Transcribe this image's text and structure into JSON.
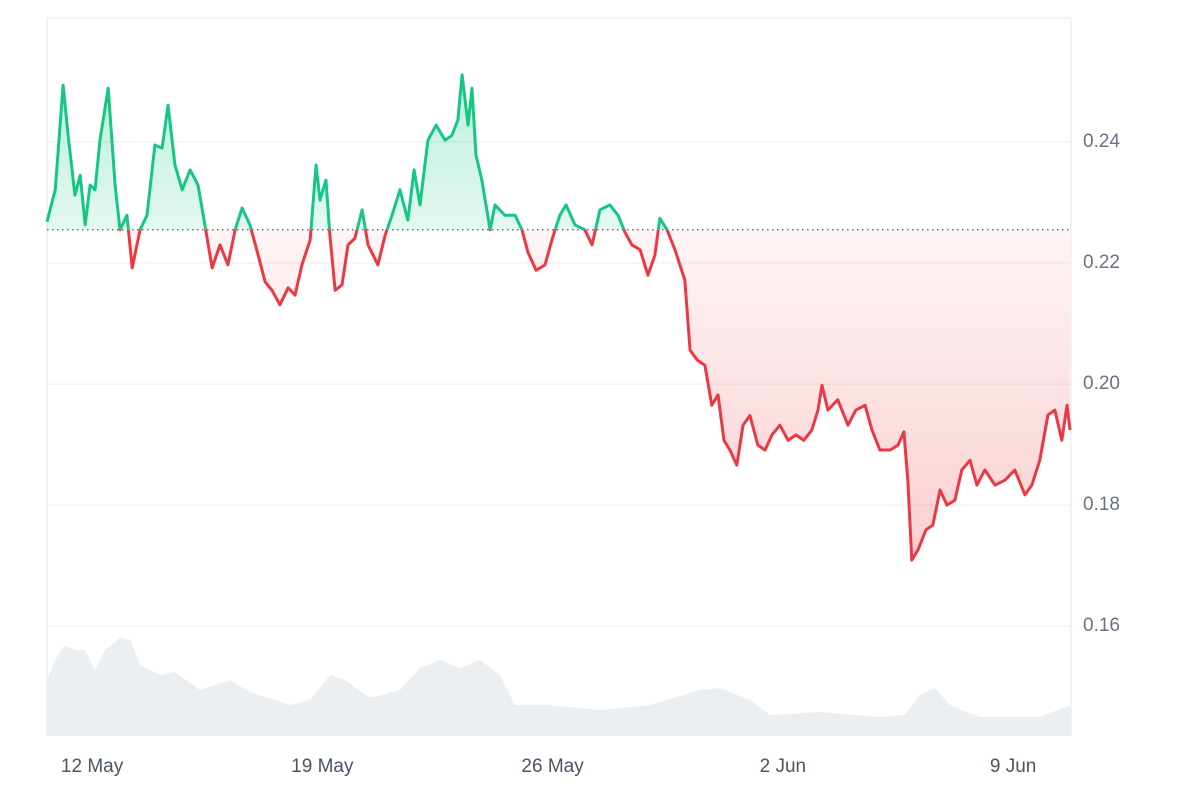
{
  "chart_data": {
    "type": "line",
    "xlim": [
      -1.37,
      29.76
    ],
    "xticks": [
      {
        "value": 0,
        "label": "12 May"
      },
      {
        "value": 7,
        "label": "19 May"
      },
      {
        "value": 14,
        "label": "26 May"
      },
      {
        "value": 21,
        "label": "2 Jun"
      },
      {
        "value": 28,
        "label": "9 Jun"
      }
    ],
    "ylim": [
      0.142,
      0.2605
    ],
    "yticks": [
      0.16,
      0.18,
      {
        "value": 0.2,
        "label": "0.20"
      },
      0.22,
      0.24
    ],
    "grid": true,
    "baseline": 0.2255,
    "x": [
      -1.37,
      -1.12,
      -0.88,
      -0.73,
      -0.52,
      -0.36,
      -0.21,
      -0.06,
      0.09,
      0.24,
      0.49,
      0.7,
      0.85,
      1.06,
      1.22,
      1.46,
      1.67,
      1.91,
      2.13,
      2.31,
      2.52,
      2.74,
      2.98,
      3.22,
      3.43,
      3.65,
      3.89,
      4.13,
      4.35,
      4.56,
      4.8,
      5.05,
      5.26,
      5.47,
      5.71,
      5.96,
      6.17,
      6.38,
      6.63,
      6.81,
      6.93,
      7.11,
      7.23,
      7.39,
      7.6,
      7.78,
      7.99,
      8.21,
      8.39,
      8.69,
      8.91,
      9.12,
      9.36,
      9.6,
      9.79,
      9.97,
      10.21,
      10.46,
      10.73,
      10.94,
      11.12,
      11.25,
      11.43,
      11.55,
      11.67,
      11.85,
      12.1,
      12.25,
      12.55,
      12.86,
      13.07,
      13.25,
      13.5,
      13.77,
      13.98,
      14.22,
      14.41,
      14.68,
      14.98,
      15.2,
      15.44,
      15.74,
      15.99,
      16.2,
      16.41,
      16.66,
      16.9,
      17.11,
      17.26,
      17.48,
      17.72,
      18.02,
      18.18,
      18.39,
      18.63,
      18.84,
      19.03,
      19.21,
      19.39,
      19.6,
      19.79,
      20.0,
      20.24,
      20.46,
      20.67,
      20.91,
      21.16,
      21.4,
      21.64,
      21.88,
      22.07,
      22.19,
      22.37,
      22.67,
      22.98,
      23.22,
      23.5,
      23.71,
      23.95,
      24.26,
      24.5,
      24.68,
      24.8,
      24.92,
      25.11,
      25.35,
      25.56,
      25.78,
      25.99,
      26.23,
      26.44,
      26.69,
      26.9,
      27.14,
      27.45,
      27.75,
      28.05,
      28.36,
      28.57,
      28.81,
      29.06,
      29.27,
      29.48,
      29.64,
      29.73
    ],
    "series": [
      {
        "color_above": "#16c784",
        "color_below": "#ea3943",
        "values": [
          0.2268,
          0.2321,
          0.2494,
          0.2412,
          0.2312,
          0.2345,
          0.2263,
          0.2329,
          0.2321,
          0.2403,
          0.2489,
          0.2329,
          0.2255,
          0.2279,
          0.2192,
          0.2255,
          0.2279,
          0.2395,
          0.239,
          0.2461,
          0.2362,
          0.2321,
          0.2354,
          0.2329,
          0.2263,
          0.2192,
          0.223,
          0.2197,
          0.2255,
          0.2291,
          0.2263,
          0.2213,
          0.2169,
          0.2155,
          0.2131,
          0.2159,
          0.2147,
          0.2197,
          0.2238,
          0.2362,
          0.2304,
          0.2337,
          0.2246,
          0.2155,
          0.2164,
          0.223,
          0.2241,
          0.2288,
          0.223,
          0.2197,
          0.2246,
          0.2279,
          0.2321,
          0.2271,
          0.2354,
          0.2296,
          0.2403,
          0.2428,
          0.2403,
          0.2411,
          0.2436,
          0.2511,
          0.2428,
          0.2489,
          0.2379,
          0.2337,
          0.2255,
          0.2296,
          0.2279,
          0.2279,
          0.2255,
          0.2218,
          0.2188,
          0.2197,
          0.2238,
          0.2279,
          0.2296,
          0.2263,
          0.2255,
          0.223,
          0.2288,
          0.2296,
          0.2279,
          0.2251,
          0.223,
          0.2222,
          0.218,
          0.2213,
          0.2274,
          0.2255,
          0.2222,
          0.2172,
          0.2056,
          0.204,
          0.2031,
          0.1965,
          0.1982,
          0.1907,
          0.1891,
          0.1866,
          0.1932,
          0.1948,
          0.1899,
          0.1891,
          0.1916,
          0.1932,
          0.1907,
          0.1916,
          0.1907,
          0.1924,
          0.1957,
          0.1998,
          0.1957,
          0.1974,
          0.1932,
          0.1957,
          0.1965,
          0.1924,
          0.1891,
          0.1891,
          0.1899,
          0.1921,
          0.1841,
          0.1709,
          0.1726,
          0.1759,
          0.1767,
          0.1825,
          0.18,
          0.1808,
          0.1858,
          0.1874,
          0.1833,
          0.1858,
          0.1833,
          0.1841,
          0.1858,
          0.1817,
          0.1833,
          0.1874,
          0.1949,
          0.1957,
          0.1907,
          0.1965,
          0.1924
        ]
      }
    ],
    "volume": {
      "color": "#eceff2",
      "ylim": [
        0,
        100
      ],
      "x": [
        -1.37,
        -1.12,
        -0.82,
        -0.52,
        -0.21,
        0.09,
        0.4,
        0.85,
        1.16,
        1.46,
        2.07,
        2.52,
        3.28,
        4.19,
        4.8,
        6.02,
        6.63,
        7.23,
        7.69,
        8.45,
        9.36,
        9.97,
        10.58,
        11.19,
        11.79,
        12.4,
        12.86,
        13.92,
        15.44,
        16.96,
        18.48,
        19.09,
        20.0,
        20.61,
        22.13,
        23.95,
        24.71,
        25.17,
        25.62,
        26.08,
        26.99,
        28.81,
        29.76
      ],
      "values": [
        55,
        75,
        90,
        85,
        85,
        65,
        85,
        97,
        95,
        70,
        60,
        63,
        45,
        55,
        43,
        30,
        35,
        60,
        55,
        37,
        45,
        67,
        75,
        67,
        75,
        60,
        30,
        30,
        25,
        30,
        45,
        47,
        35,
        20,
        23,
        18,
        20,
        40,
        47,
        30,
        18,
        18,
        30
      ]
    }
  }
}
